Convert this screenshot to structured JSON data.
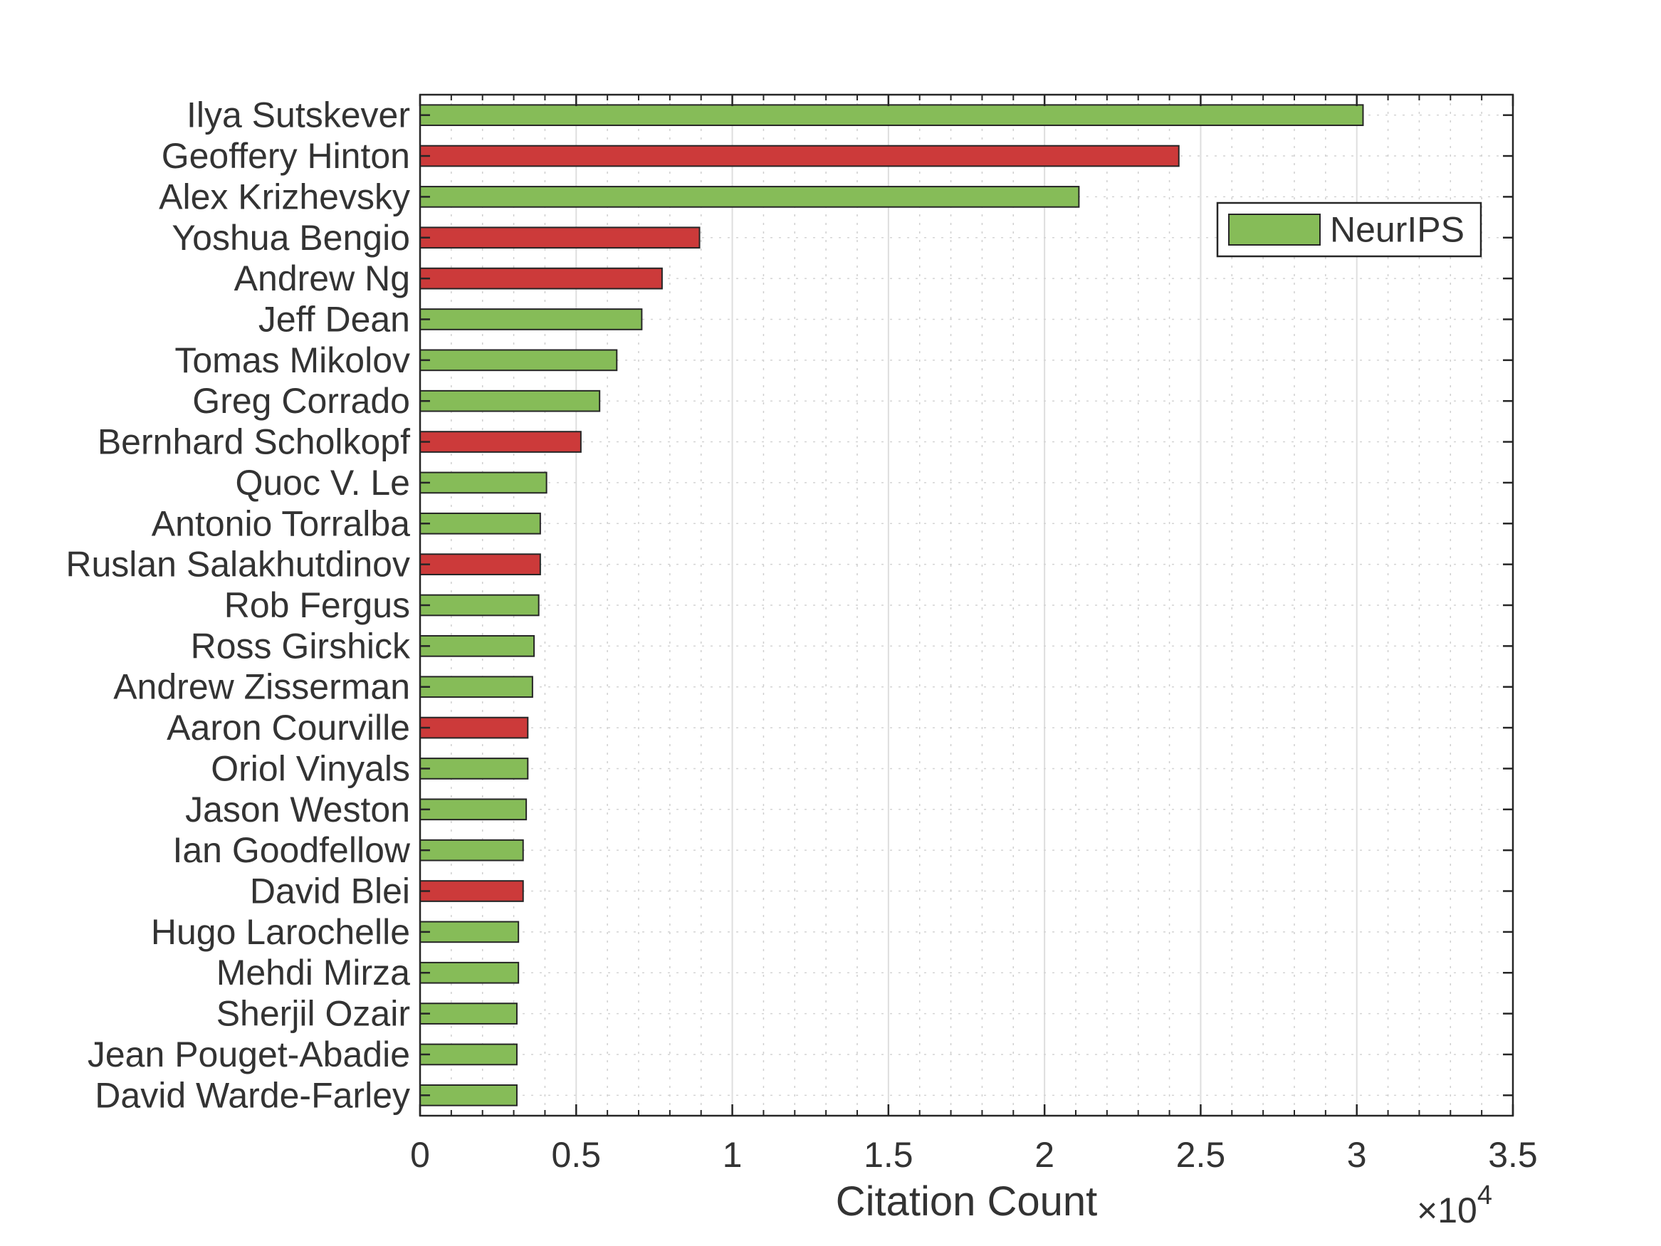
{
  "chart_data": {
    "type": "bar",
    "orientation": "horizontal",
    "categories": [
      "Ilya Sutskever",
      "Geoffery Hinton",
      "Alex Krizhevsky",
      "Yoshua Bengio",
      "Andrew Ng",
      "Jeff Dean",
      "Tomas Mikolov",
      "Greg Corrado",
      "Bernhard Scholkopf",
      "Quoc V. Le",
      "Antonio Torralba",
      "Ruslan Salakhutdinov",
      "Rob Fergus",
      "Ross Girshick",
      "Andrew Zisserman",
      "Aaron Courville",
      "Oriol Vinyals",
      "Jason Weston",
      "Ian Goodfellow",
      "David Blei",
      "Hugo Larochelle",
      "Mehdi Mirza",
      "Sherjil Ozair",
      "Jean Pouget-Abadie",
      "David Warde-Farley"
    ],
    "values": [
      30200,
      24300,
      21100,
      8950,
      7750,
      7100,
      6300,
      5750,
      5150,
      4050,
      3850,
      3850,
      3800,
      3650,
      3600,
      3450,
      3450,
      3400,
      3300,
      3300,
      3150,
      3150,
      3100,
      3100,
      3100
    ],
    "bar_colors": [
      "#86bc58",
      "#cc3a3a",
      "#86bc58",
      "#cc3a3a",
      "#cc3a3a",
      "#86bc58",
      "#86bc58",
      "#86bc58",
      "#cc3a3a",
      "#86bc58",
      "#86bc58",
      "#cc3a3a",
      "#86bc58",
      "#86bc58",
      "#86bc58",
      "#cc3a3a",
      "#86bc58",
      "#86bc58",
      "#86bc58",
      "#cc3a3a",
      "#86bc58",
      "#86bc58",
      "#86bc58",
      "#86bc58",
      "#86bc58"
    ],
    "xlabel": "Citation Count",
    "xlim": [
      0,
      35000
    ],
    "xticks": [
      0,
      5000,
      10000,
      15000,
      20000,
      25000,
      30000,
      35000
    ],
    "xtick_labels": [
      "0",
      "0.5",
      "1",
      "1.5",
      "2",
      "2.5",
      "3",
      "3.5"
    ],
    "x_exponent_label": {
      "base": "×10",
      "exponent": "4"
    },
    "grid": true,
    "minor_grid": true,
    "legend": {
      "entries": [
        {
          "label": "NeurIPS",
          "color": "#86bc58"
        }
      ],
      "placement": "top-right"
    }
  }
}
